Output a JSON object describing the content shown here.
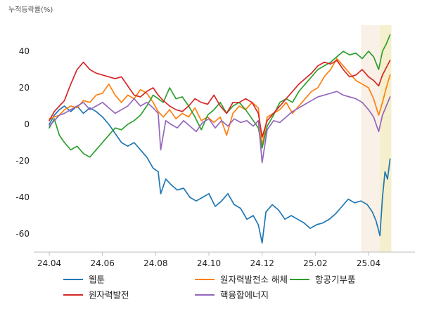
{
  "chart_data": {
    "type": "line",
    "unit_label": "누적등락률(%)",
    "x_tick_labels": [
      "24.04",
      "24.06",
      "24.08",
      "24.10",
      "24.12",
      "25.02",
      "25.04"
    ],
    "x_ticks": [
      0,
      42,
      84,
      126,
      168,
      210,
      252
    ],
    "xlim": [
      -2,
      272
    ],
    "ylim": [
      -70,
      55
    ],
    "y_ticks": [
      40,
      20,
      0,
      -20,
      -40,
      -60
    ],
    "y_tick_labels": [
      "40",
      "20",
      "0",
      "-20",
      "-40",
      "-60"
    ],
    "grid": false,
    "legend_position": "bottom",
    "highlight_bands": [
      {
        "from": 246,
        "to": 270,
        "color": "#f7ecdf",
        "opacity": 0.75
      },
      {
        "from": 261,
        "to": 270,
        "color": "#f4efc9",
        "opacity": 0.85
      }
    ],
    "series": [
      {
        "name": "웹툰",
        "color": "#1f77b4",
        "points": [
          [
            0,
            0
          ],
          [
            4,
            5
          ],
          [
            8,
            8
          ],
          [
            12,
            10
          ],
          [
            17,
            7
          ],
          [
            22,
            10
          ],
          [
            27,
            6
          ],
          [
            32,
            9
          ],
          [
            37,
            7
          ],
          [
            42,
            4
          ],
          [
            47,
            0
          ],
          [
            52,
            -5
          ],
          [
            57,
            -10
          ],
          [
            62,
            -12
          ],
          [
            67,
            -10
          ],
          [
            72,
            -14
          ],
          [
            77,
            -18
          ],
          [
            82,
            -24
          ],
          [
            86,
            -26
          ],
          [
            88,
            -38
          ],
          [
            92,
            -30
          ],
          [
            96,
            -33
          ],
          [
            101,
            -36
          ],
          [
            106,
            -35
          ],
          [
            111,
            -40
          ],
          [
            116,
            -42
          ],
          [
            121,
            -40
          ],
          [
            126,
            -38
          ],
          [
            131,
            -45
          ],
          [
            136,
            -42
          ],
          [
            141,
            -38
          ],
          [
            146,
            -44
          ],
          [
            151,
            -46
          ],
          [
            156,
            -52
          ],
          [
            161,
            -50
          ],
          [
            165,
            -55
          ],
          [
            168,
            -65
          ],
          [
            171,
            -48
          ],
          [
            176,
            -44
          ],
          [
            181,
            -47
          ],
          [
            186,
            -52
          ],
          [
            191,
            -50
          ],
          [
            196,
            -52
          ],
          [
            201,
            -54
          ],
          [
            206,
            -57
          ],
          [
            211,
            -55
          ],
          [
            216,
            -54
          ],
          [
            221,
            -52
          ],
          [
            226,
            -49
          ],
          [
            231,
            -45
          ],
          [
            236,
            -41
          ],
          [
            241,
            -43
          ],
          [
            246,
            -42
          ],
          [
            251,
            -44
          ],
          [
            255,
            -48
          ],
          [
            258,
            -53
          ],
          [
            261,
            -61
          ],
          [
            263,
            -40
          ],
          [
            265,
            -26
          ],
          [
            267,
            -30
          ],
          [
            269,
            -19
          ]
        ]
      },
      {
        "name": "원자력발전소 해체",
        "color": "#ff7f0e",
        "points": [
          [
            0,
            3
          ],
          [
            4,
            4
          ],
          [
            8,
            5
          ],
          [
            12,
            8
          ],
          [
            17,
            10
          ],
          [
            22,
            9
          ],
          [
            27,
            13
          ],
          [
            32,
            12
          ],
          [
            37,
            16
          ],
          [
            42,
            17
          ],
          [
            47,
            22
          ],
          [
            52,
            16
          ],
          [
            57,
            12
          ],
          [
            62,
            16
          ],
          [
            67,
            14
          ],
          [
            72,
            19
          ],
          [
            77,
            17
          ],
          [
            82,
            12
          ],
          [
            86,
            7
          ],
          [
            90,
            4
          ],
          [
            95,
            8
          ],
          [
            100,
            3
          ],
          [
            105,
            6
          ],
          [
            110,
            4
          ],
          [
            115,
            9
          ],
          [
            120,
            2
          ],
          [
            125,
            4
          ],
          [
            130,
            1
          ],
          [
            135,
            4
          ],
          [
            140,
            -6
          ],
          [
            145,
            6
          ],
          [
            150,
            10
          ],
          [
            155,
            8
          ],
          [
            160,
            12
          ],
          [
            165,
            9
          ],
          [
            168,
            -12
          ],
          [
            172,
            4
          ],
          [
            177,
            6
          ],
          [
            182,
            8
          ],
          [
            187,
            12
          ],
          [
            192,
            6
          ],
          [
            197,
            10
          ],
          [
            202,
            14
          ],
          [
            207,
            18
          ],
          [
            212,
            20
          ],
          [
            217,
            26
          ],
          [
            222,
            30
          ],
          [
            227,
            36
          ],
          [
            232,
            32
          ],
          [
            237,
            28
          ],
          [
            242,
            24
          ],
          [
            247,
            22
          ],
          [
            252,
            20
          ],
          [
            256,
            14
          ],
          [
            260,
            5
          ],
          [
            263,
            12
          ],
          [
            266,
            20
          ],
          [
            269,
            27
          ]
        ]
      },
      {
        "name": "항공기부품",
        "color": "#2ca02c",
        "points": [
          [
            0,
            -2
          ],
          [
            4,
            3
          ],
          [
            8,
            -6
          ],
          [
            12,
            -10
          ],
          [
            17,
            -14
          ],
          [
            22,
            -12
          ],
          [
            27,
            -16
          ],
          [
            32,
            -18
          ],
          [
            37,
            -14
          ],
          [
            42,
            -10
          ],
          [
            47,
            -6
          ],
          [
            52,
            -2
          ],
          [
            57,
            -3
          ],
          [
            62,
            0
          ],
          [
            67,
            2
          ],
          [
            72,
            5
          ],
          [
            77,
            10
          ],
          [
            82,
            16
          ],
          [
            86,
            14
          ],
          [
            90,
            12
          ],
          [
            95,
            20
          ],
          [
            100,
            14
          ],
          [
            105,
            15
          ],
          [
            110,
            10
          ],
          [
            115,
            4
          ],
          [
            120,
            -3
          ],
          [
            125,
            5
          ],
          [
            130,
            8
          ],
          [
            135,
            12
          ],
          [
            140,
            6
          ],
          [
            145,
            10
          ],
          [
            150,
            12
          ],
          [
            155,
            8
          ],
          [
            160,
            3
          ],
          [
            165,
            -2
          ],
          [
            168,
            -13
          ],
          [
            172,
            -1
          ],
          [
            177,
            5
          ],
          [
            182,
            12
          ],
          [
            187,
            14
          ],
          [
            192,
            12
          ],
          [
            197,
            18
          ],
          [
            202,
            22
          ],
          [
            207,
            26
          ],
          [
            212,
            30
          ],
          [
            217,
            32
          ],
          [
            222,
            34
          ],
          [
            227,
            37
          ],
          [
            232,
            40
          ],
          [
            237,
            38
          ],
          [
            242,
            39
          ],
          [
            247,
            36
          ],
          [
            252,
            40
          ],
          [
            256,
            37
          ],
          [
            260,
            30
          ],
          [
            263,
            40
          ],
          [
            266,
            44
          ],
          [
            269,
            49
          ]
        ]
      },
      {
        "name": "원자력발전",
        "color": "#d62728",
        "points": [
          [
            0,
            2
          ],
          [
            4,
            7
          ],
          [
            8,
            10
          ],
          [
            12,
            13
          ],
          [
            17,
            22
          ],
          [
            22,
            30
          ],
          [
            27,
            34
          ],
          [
            32,
            30
          ],
          [
            37,
            28
          ],
          [
            42,
            27
          ],
          [
            47,
            26
          ],
          [
            52,
            25
          ],
          [
            57,
            26
          ],
          [
            62,
            21
          ],
          [
            67,
            16
          ],
          [
            72,
            15
          ],
          [
            77,
            18
          ],
          [
            82,
            20
          ],
          [
            86,
            16
          ],
          [
            90,
            13
          ],
          [
            95,
            10
          ],
          [
            100,
            8
          ],
          [
            105,
            7
          ],
          [
            110,
            10
          ],
          [
            115,
            14
          ],
          [
            120,
            12
          ],
          [
            125,
            11
          ],
          [
            130,
            16
          ],
          [
            135,
            10
          ],
          [
            140,
            6
          ],
          [
            145,
            12
          ],
          [
            150,
            12
          ],
          [
            155,
            14
          ],
          [
            160,
            12
          ],
          [
            165,
            6
          ],
          [
            168,
            -7
          ],
          [
            172,
            2
          ],
          [
            177,
            6
          ],
          [
            182,
            10
          ],
          [
            187,
            14
          ],
          [
            192,
            18
          ],
          [
            197,
            22
          ],
          [
            202,
            25
          ],
          [
            207,
            28
          ],
          [
            212,
            32
          ],
          [
            217,
            34
          ],
          [
            222,
            33
          ],
          [
            227,
            35
          ],
          [
            232,
            30
          ],
          [
            237,
            26
          ],
          [
            242,
            27
          ],
          [
            247,
            30
          ],
          [
            252,
            26
          ],
          [
            256,
            24
          ],
          [
            260,
            21
          ],
          [
            263,
            27
          ],
          [
            266,
            31
          ],
          [
            269,
            35
          ]
        ]
      },
      {
        "name": "핵융합에너지",
        "color": "#9467bd",
        "points": [
          [
            0,
            -1
          ],
          [
            4,
            2
          ],
          [
            8,
            5
          ],
          [
            12,
            6
          ],
          [
            17,
            8
          ],
          [
            22,
            10
          ],
          [
            27,
            12
          ],
          [
            32,
            8
          ],
          [
            37,
            10
          ],
          [
            42,
            12
          ],
          [
            47,
            9
          ],
          [
            52,
            6
          ],
          [
            57,
            8
          ],
          [
            62,
            10
          ],
          [
            67,
            14
          ],
          [
            72,
            10
          ],
          [
            77,
            12
          ],
          [
            82,
            9
          ],
          [
            86,
            6
          ],
          [
            88,
            -14
          ],
          [
            92,
            2
          ],
          [
            96,
            0
          ],
          [
            101,
            -2
          ],
          [
            106,
            2
          ],
          [
            111,
            -1
          ],
          [
            116,
            -4
          ],
          [
            121,
            1
          ],
          [
            126,
            3
          ],
          [
            131,
            -2
          ],
          [
            136,
            2
          ],
          [
            141,
            -1
          ],
          [
            146,
            3
          ],
          [
            151,
            1
          ],
          [
            156,
            2
          ],
          [
            161,
            -1
          ],
          [
            165,
            2
          ],
          [
            168,
            -21
          ],
          [
            172,
            -3
          ],
          [
            177,
            2
          ],
          [
            182,
            1
          ],
          [
            187,
            4
          ],
          [
            192,
            7
          ],
          [
            197,
            9
          ],
          [
            202,
            11
          ],
          [
            207,
            13
          ],
          [
            212,
            15
          ],
          [
            217,
            16
          ],
          [
            222,
            17
          ],
          [
            227,
            18
          ],
          [
            232,
            16
          ],
          [
            237,
            15
          ],
          [
            242,
            14
          ],
          [
            247,
            12
          ],
          [
            252,
            8
          ],
          [
            256,
            4
          ],
          [
            260,
            -4
          ],
          [
            263,
            5
          ],
          [
            266,
            10
          ],
          [
            269,
            15
          ]
        ]
      }
    ]
  }
}
